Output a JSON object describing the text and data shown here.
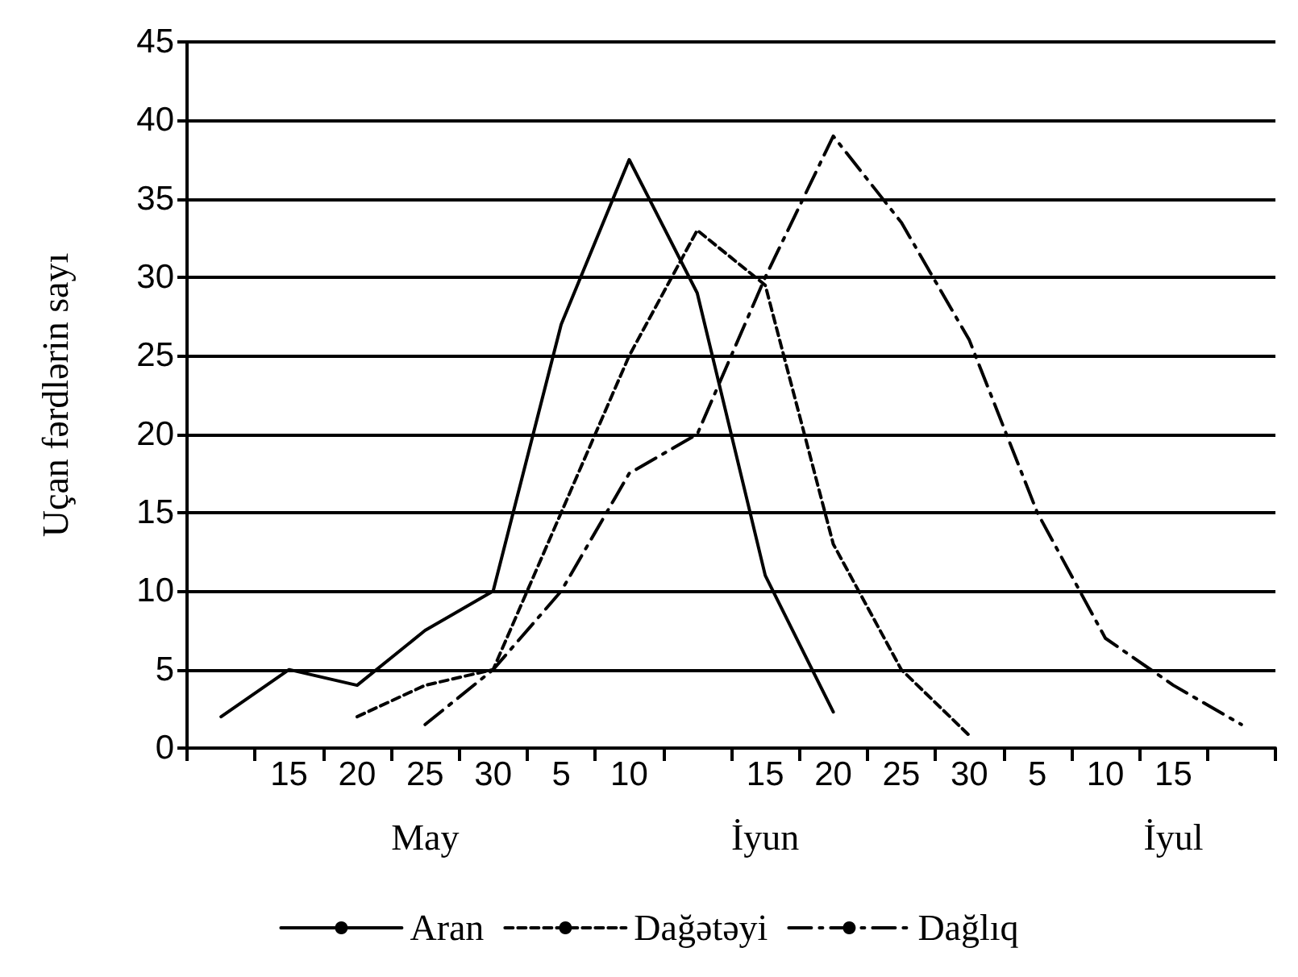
{
  "chart_data": {
    "type": "line",
    "ylabel": "Uçan fərdlərin sayı",
    "categories": [
      null,
      "15",
      "20",
      "25",
      "30",
      "5",
      "10",
      null,
      "15",
      "20",
      "25",
      "30",
      "5",
      "10",
      "15",
      null
    ],
    "series": [
      {
        "name": "Aran",
        "color": "#000000",
        "line_style": "solid",
        "values": [
          2,
          5,
          4,
          7.5,
          10,
          27,
          37.5,
          29,
          11,
          2.3,
          null,
          null,
          null,
          null,
          null,
          null
        ]
      },
      {
        "name": "Dağətəyi",
        "color": "#000000",
        "line_style": "dotted",
        "values": [
          null,
          null,
          2,
          4,
          5,
          15,
          25,
          33,
          29.5,
          13,
          5,
          0.8,
          null,
          null,
          null,
          null
        ]
      },
      {
        "name": "Dağlıq",
        "color": "#000000",
        "line_style": "dashed",
        "values": [
          null,
          null,
          null,
          1.5,
          5,
          10,
          17.5,
          20,
          30,
          39,
          33.5,
          26,
          15,
          7,
          4,
          1.5
        ]
      }
    ],
    "annotations": [
      "May",
      "İyun",
      "İyul"
    ],
    "ylim": [
      0,
      45
    ],
    "yticks": [
      0,
      5,
      10,
      15,
      20,
      25,
      30,
      35,
      40,
      45
    ],
    "grid": "y",
    "legend": "bottom",
    "marker": "none"
  }
}
